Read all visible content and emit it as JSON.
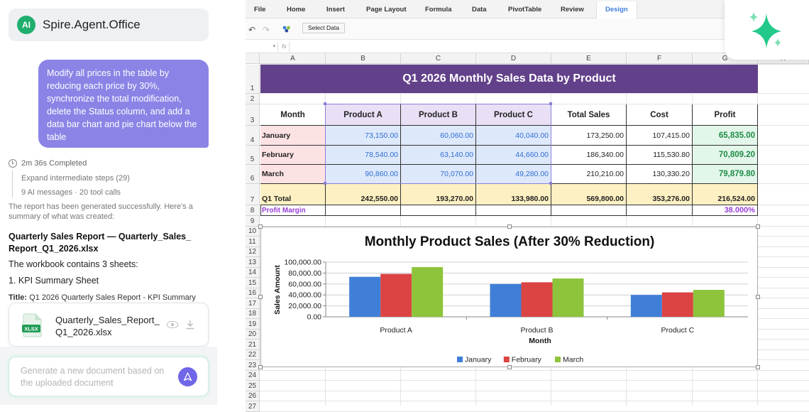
{
  "sidebar": {
    "app_name": "Spire.Agent.Office",
    "logo_text": "AI",
    "user_message": "Modify all prices in the table by reducing each price by 30%, synchronize the total modification, delete the Status column, and add a data bar chart and pie chart below the table",
    "status": "2m 36s Completed",
    "expand_steps": "Expand intermediate steps (29)",
    "message_counts": "9 AI messages · 20 tool calls",
    "summary": "The report has been generated successfully. Here's a summary of what was created:",
    "report_title": "Quarterly Sales Report — Quarterly_Sales_ Report_Q1_2026.xlsx",
    "contains": "The workbook contains 3 sheets:",
    "sheet_item": "1. KPI Summary Sheet",
    "title_label": "Title:",
    "title_value": " Q1 2026 Quarterly Sales Report - KPI Summary",
    "file_badge": "XLSX",
    "file_name": "Quarterly_Sales_Report_ Q1_2026.xlsx",
    "input_placeholder": "Generate a new document based on the uploaded document"
  },
  "ribbon": {
    "tabs": [
      "File",
      "Home",
      "Insert",
      "Page Layout",
      "Formula",
      "Data",
      "PivotTable",
      "Review",
      "Design"
    ],
    "active_tab": "Design",
    "undo": "↶",
    "redo": "↷",
    "select_data": "Select Data",
    "fx": "fx"
  },
  "grid": {
    "columns": [
      "A",
      "B",
      "C",
      "D",
      "E",
      "F",
      "G",
      "H"
    ],
    "rows": [
      "1",
      "2",
      "3",
      "4",
      "5",
      "6",
      "7",
      "8",
      "9",
      "10",
      "11",
      "12",
      "13",
      "14",
      "15",
      "16",
      "17",
      "18",
      "19",
      "20",
      "21",
      "22",
      "23",
      "24",
      "25",
      "26",
      "27"
    ]
  },
  "sheet": {
    "title": "Q1 2026 Monthly Sales Data by Product",
    "headers": [
      "Month",
      "Product A",
      "Product B",
      "Product C",
      "Total Sales",
      "Cost",
      "Profit"
    ],
    "rows": [
      [
        "January",
        "73,150.00",
        "60,060.00",
        "40,040.00",
        "173,250.00",
        "107,415.00",
        "65,835.00"
      ],
      [
        "February",
        "78,540.00",
        "63,140.00",
        "44,660.00",
        "186,340.00",
        "115,530.80",
        "70,809.20"
      ],
      [
        "March",
        "90,860.00",
        "70,070.00",
        "49,280.00",
        "210,210.00",
        "130,330.20",
        "79,879.80"
      ]
    ],
    "total_row": [
      "Q1 Total",
      "242,550.00",
      "193,270.00",
      "133,980.00",
      "569,800.00",
      "353,276.00",
      "216,524.00"
    ],
    "margin_label": "Profit Margin",
    "margin_value": "38.000%",
    "colors": {
      "title_bg": "#63418a",
      "month_bg": "#fde2e4",
      "product_bg": "#dde8fb",
      "product_hdr_bg": "#e9e0f5",
      "profit_bg": "#e3f6ea",
      "profit_text": "#1e8b45",
      "total_bg": "#fdf0c2",
      "margin_text": "#9a40d8"
    }
  },
  "chart_data": {
    "type": "bar",
    "title": "Monthly Product Sales (After 30% Reduction)",
    "xlabel": "Month",
    "ylabel": "Sales Amount",
    "categories": [
      "Product A",
      "Product B",
      "Product C"
    ],
    "series": [
      {
        "name": "January",
        "color": "#3f7fd8",
        "values": [
          73150,
          60060,
          40040
        ]
      },
      {
        "name": "February",
        "color": "#dc4444",
        "values": [
          78540,
          63140,
          44660
        ]
      },
      {
        "name": "March",
        "color": "#8dc43c",
        "values": [
          90860,
          70070,
          49280
        ]
      }
    ],
    "yticks": [
      "0.00",
      "20,000.00",
      "40,000.00",
      "60,000.00",
      "80,000.00",
      "100,000.00"
    ],
    "ylim": [
      0,
      100000
    ],
    "grid": true,
    "legend_position": "bottom"
  }
}
